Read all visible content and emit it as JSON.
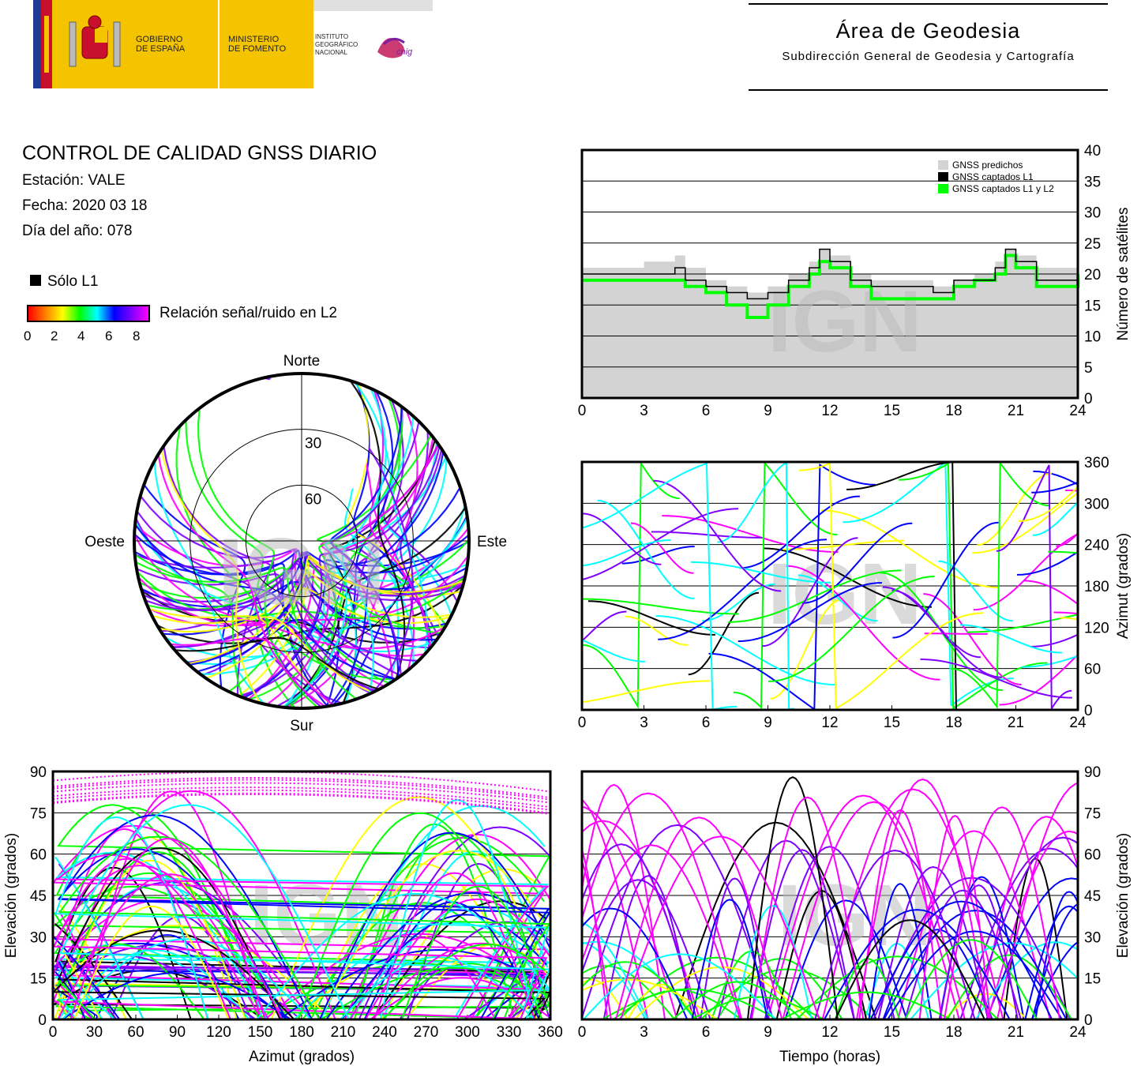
{
  "header": {
    "logo_gobierno": "GOBIERNO\nDE ESPAÑA",
    "logo_ministerio": "MINISTERIO\nDE FOMENTO",
    "logo_ign": "INSTITUTO\nGEOGRÁFICO\nNACIONAL",
    "logo_cnig": "cnig",
    "area_title": "Área de Geodesia",
    "area_subtitle": "Subdirección General de Geodesia y Cartografía"
  },
  "report": {
    "title": "CONTROL DE CALIDAD GNSS DIARIO",
    "station": "Estación: VALE",
    "date": "Fecha: 2020 03 18",
    "doy": "Día del año: 078",
    "l1_only_label": "Sólo L1",
    "snr_label": "Relación señal/ruido en L2",
    "snr_ticks": [
      "0",
      "2",
      "4",
      "6",
      "8"
    ]
  },
  "colors": {
    "snr_scale": [
      "#ff0000",
      "#ff7f00",
      "#ffff00",
      "#00ff00",
      "#00ffff",
      "#0000ff",
      "#7f00ff",
      "#ff00ff"
    ],
    "predicted": "#d3d3d3",
    "l1": "#000000",
    "l1l2": "#00ff00"
  },
  "chart_data": [
    {
      "type": "area",
      "id": "satellites-count",
      "ylabel": "Número de satélites",
      "xlim": [
        0,
        24
      ],
      "ylim": [
        0,
        40
      ],
      "xticks": [
        0,
        3,
        6,
        9,
        12,
        15,
        18,
        21,
        24
      ],
      "yticks": [
        0,
        5,
        10,
        15,
        20,
        25,
        30,
        35,
        40
      ],
      "grid": true,
      "legend_position": "top-right",
      "watermark": "IGN",
      "series": [
        {
          "name": "GNSS predichos",
          "x": [
            0,
            1,
            2,
            3,
            4,
            4.5,
            5,
            6,
            7,
            8,
            9,
            10,
            11,
            11.5,
            12,
            13,
            14,
            15,
            16,
            17,
            18,
            19,
            20,
            20.5,
            21,
            22,
            23,
            24
          ],
          "values": [
            21,
            21,
            21,
            22,
            22,
            23,
            21,
            19,
            18,
            17,
            18,
            20,
            22,
            24,
            23,
            20,
            19,
            19,
            19,
            18,
            19,
            20,
            22,
            24,
            23,
            21,
            21,
            22
          ]
        },
        {
          "name": "GNSS captados L1",
          "x": [
            0,
            1,
            2,
            3,
            4,
            4.5,
            5,
            6,
            7,
            8,
            9,
            10,
            11,
            11.5,
            12,
            13,
            14,
            15,
            16,
            17,
            18,
            19,
            20,
            20.5,
            21,
            22,
            23,
            24
          ],
          "values": [
            20,
            20,
            20,
            20,
            20,
            21,
            19,
            18,
            17,
            16,
            17,
            19,
            21,
            24,
            22,
            19,
            18,
            18,
            18,
            17,
            19,
            19,
            21,
            24,
            22,
            19,
            19,
            21
          ]
        },
        {
          "name": "GNSS captados L1 y L2",
          "x": [
            0,
            1,
            2,
            3,
            4,
            4.5,
            5,
            6,
            7,
            8,
            9,
            10,
            11,
            11.5,
            12,
            13,
            14,
            15,
            16,
            17,
            18,
            19,
            20,
            20.5,
            21,
            22,
            23,
            24
          ],
          "values": [
            19,
            19,
            19,
            19,
            19,
            19,
            18,
            17,
            15,
            13,
            15,
            18,
            20,
            22,
            21,
            18,
            16,
            16,
            16,
            16,
            18,
            19,
            20,
            23,
            21,
            18,
            18,
            20
          ]
        }
      ]
    },
    {
      "type": "scatter",
      "id": "skyplot",
      "labels": {
        "north": "Norte",
        "south": "Sur",
        "east": "Este",
        "west": "Oeste"
      },
      "ring_labels": [
        "30",
        "60"
      ],
      "watermark": "IGN"
    },
    {
      "type": "scatter",
      "id": "azimuth-time",
      "ylabel": "Azimut (grados)",
      "xlim": [
        0,
        24
      ],
      "ylim": [
        0,
        360
      ],
      "xticks": [
        0,
        3,
        6,
        9,
        12,
        15,
        18,
        21,
        24
      ],
      "yticks": [
        0,
        60,
        120,
        180,
        240,
        300,
        360
      ],
      "grid": true,
      "watermark": "IGN"
    },
    {
      "type": "scatter",
      "id": "elevation-azimuth",
      "xlabel": "Azimut (grados)",
      "ylabel": "Elevación (grados)",
      "xlim": [
        0,
        360
      ],
      "ylim": [
        0,
        90
      ],
      "xticks": [
        0,
        30,
        60,
        90,
        120,
        150,
        180,
        210,
        240,
        270,
        300,
        330,
        360
      ],
      "yticks": [
        0,
        15,
        30,
        45,
        60,
        75,
        90
      ],
      "grid": true,
      "watermark": "IGN"
    },
    {
      "type": "scatter",
      "id": "elevation-time",
      "xlabel": "Tiempo (horas)",
      "ylabel": "Elevación (grados)",
      "xlim": [
        0,
        24
      ],
      "ylim": [
        0,
        90
      ],
      "xticks": [
        0,
        3,
        6,
        9,
        12,
        15,
        18,
        21,
        24
      ],
      "yticks": [
        0,
        15,
        30,
        45,
        60,
        75,
        90
      ],
      "grid": true,
      "watermark": "IGN"
    }
  ]
}
